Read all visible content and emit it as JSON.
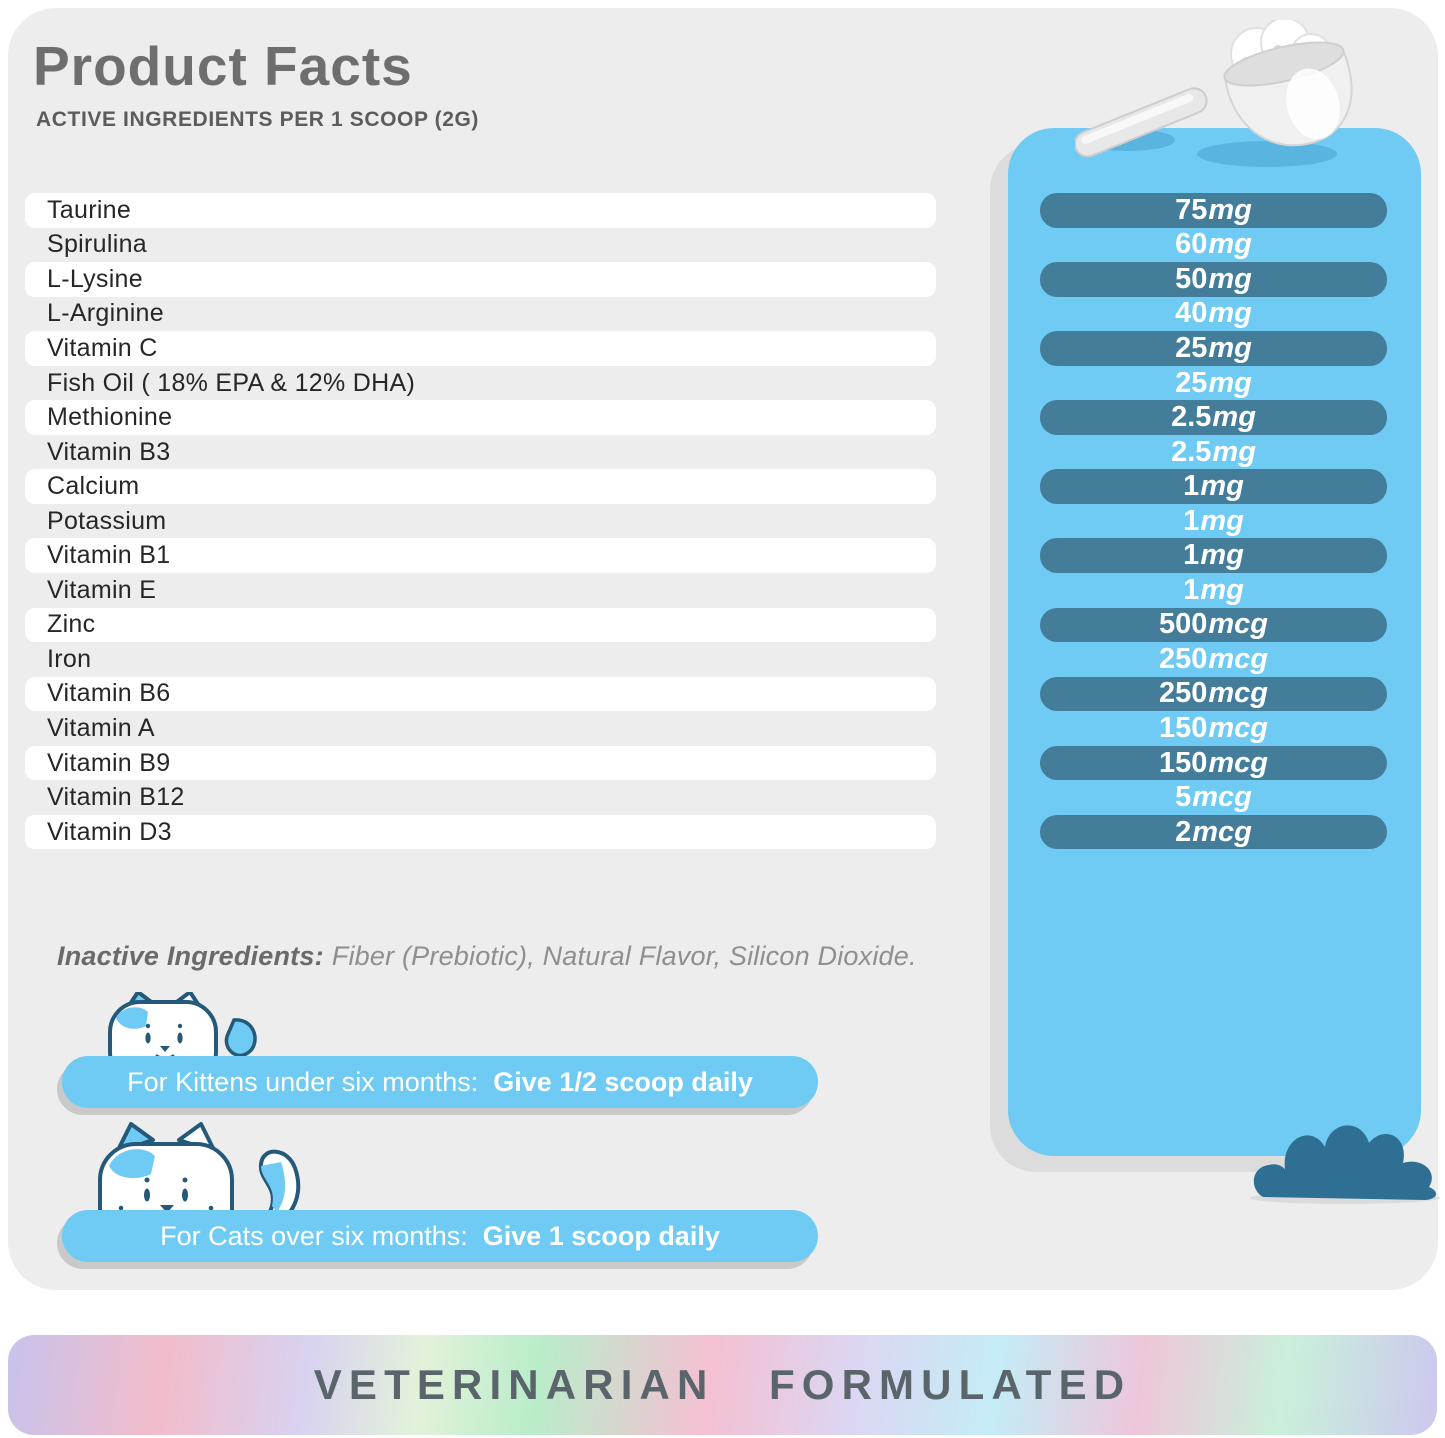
{
  "header": {
    "title": "Product Facts",
    "subtitle": "ACTIVE INGREDIENTS PER 1 SCOOP (2G)"
  },
  "ingredients": [
    {
      "name": "Taurine",
      "amount": "75",
      "unit": "mg",
      "highlight": true
    },
    {
      "name": "Spirulina",
      "amount": "60",
      "unit": "mg",
      "highlight": false
    },
    {
      "name": "L-Lysine",
      "amount": "50",
      "unit": "mg",
      "highlight": true
    },
    {
      "name": "L-Arginine",
      "amount": "40",
      "unit": "mg",
      "highlight": false
    },
    {
      "name": "Vitamin C",
      "amount": "25",
      "unit": "mg",
      "highlight": true
    },
    {
      "name": "Fish Oil ( 18% EPA & 12% DHA)",
      "amount": "25",
      "unit": "mg",
      "highlight": false
    },
    {
      "name": "Methionine",
      "amount": "2.5",
      "unit": "mg",
      "highlight": true
    },
    {
      "name": "Vitamin B3",
      "amount": "2.5",
      "unit": "mg",
      "highlight": false
    },
    {
      "name": "Calcium",
      "amount": "1",
      "unit": "mg",
      "highlight": true
    },
    {
      "name": "Potassium",
      "amount": "1",
      "unit": "mg",
      "highlight": false
    },
    {
      "name": "Vitamin B1",
      "amount": "1",
      "unit": "mg",
      "highlight": true
    },
    {
      "name": "Vitamin E",
      "amount": "1",
      "unit": "mg",
      "highlight": false
    },
    {
      "name": "Zinc",
      "amount": "500",
      "unit": "mcg",
      "highlight": true
    },
    {
      "name": "Iron",
      "amount": "250",
      "unit": "mcg",
      "highlight": false
    },
    {
      "name": "Vitamin B6",
      "amount": "250",
      "unit": "mcg",
      "highlight": true
    },
    {
      "name": "Vitamin A",
      "amount": "150",
      "unit": "mcg",
      "highlight": false
    },
    {
      "name": "Vitamin B9",
      "amount": "150",
      "unit": "mcg",
      "highlight": true
    },
    {
      "name": "Vitamin B12",
      "amount": "5",
      "unit": "mcg",
      "highlight": false
    },
    {
      "name": "Vitamin D3",
      "amount": "2",
      "unit": "mcg",
      "highlight": true
    }
  ],
  "inactive": {
    "label": "Inactive Ingredients:",
    "text": "Fiber (Prebiotic), Natural Flavor, Silicon Dioxide."
  },
  "dosage": {
    "kittens": {
      "prefix": "For Kittens under six months:",
      "instruction": "Give 1/2 scoop daily"
    },
    "cats": {
      "prefix": "For Cats over six months:",
      "instruction": "Give 1 scoop daily"
    }
  },
  "banner": {
    "text": "VETERINARIAN FORMULATED"
  },
  "icons": {
    "scoop": "powder-scoop",
    "kitten": "kitten-face",
    "cat": "cat-with-tail",
    "bush": "bush"
  },
  "colors": {
    "panel_blue": "#6FCBF3",
    "pill_teal": "#447D99",
    "bush_teal": "#2E6F93",
    "card_gray": "#EDEDED",
    "banner_text": "#5A646B"
  }
}
